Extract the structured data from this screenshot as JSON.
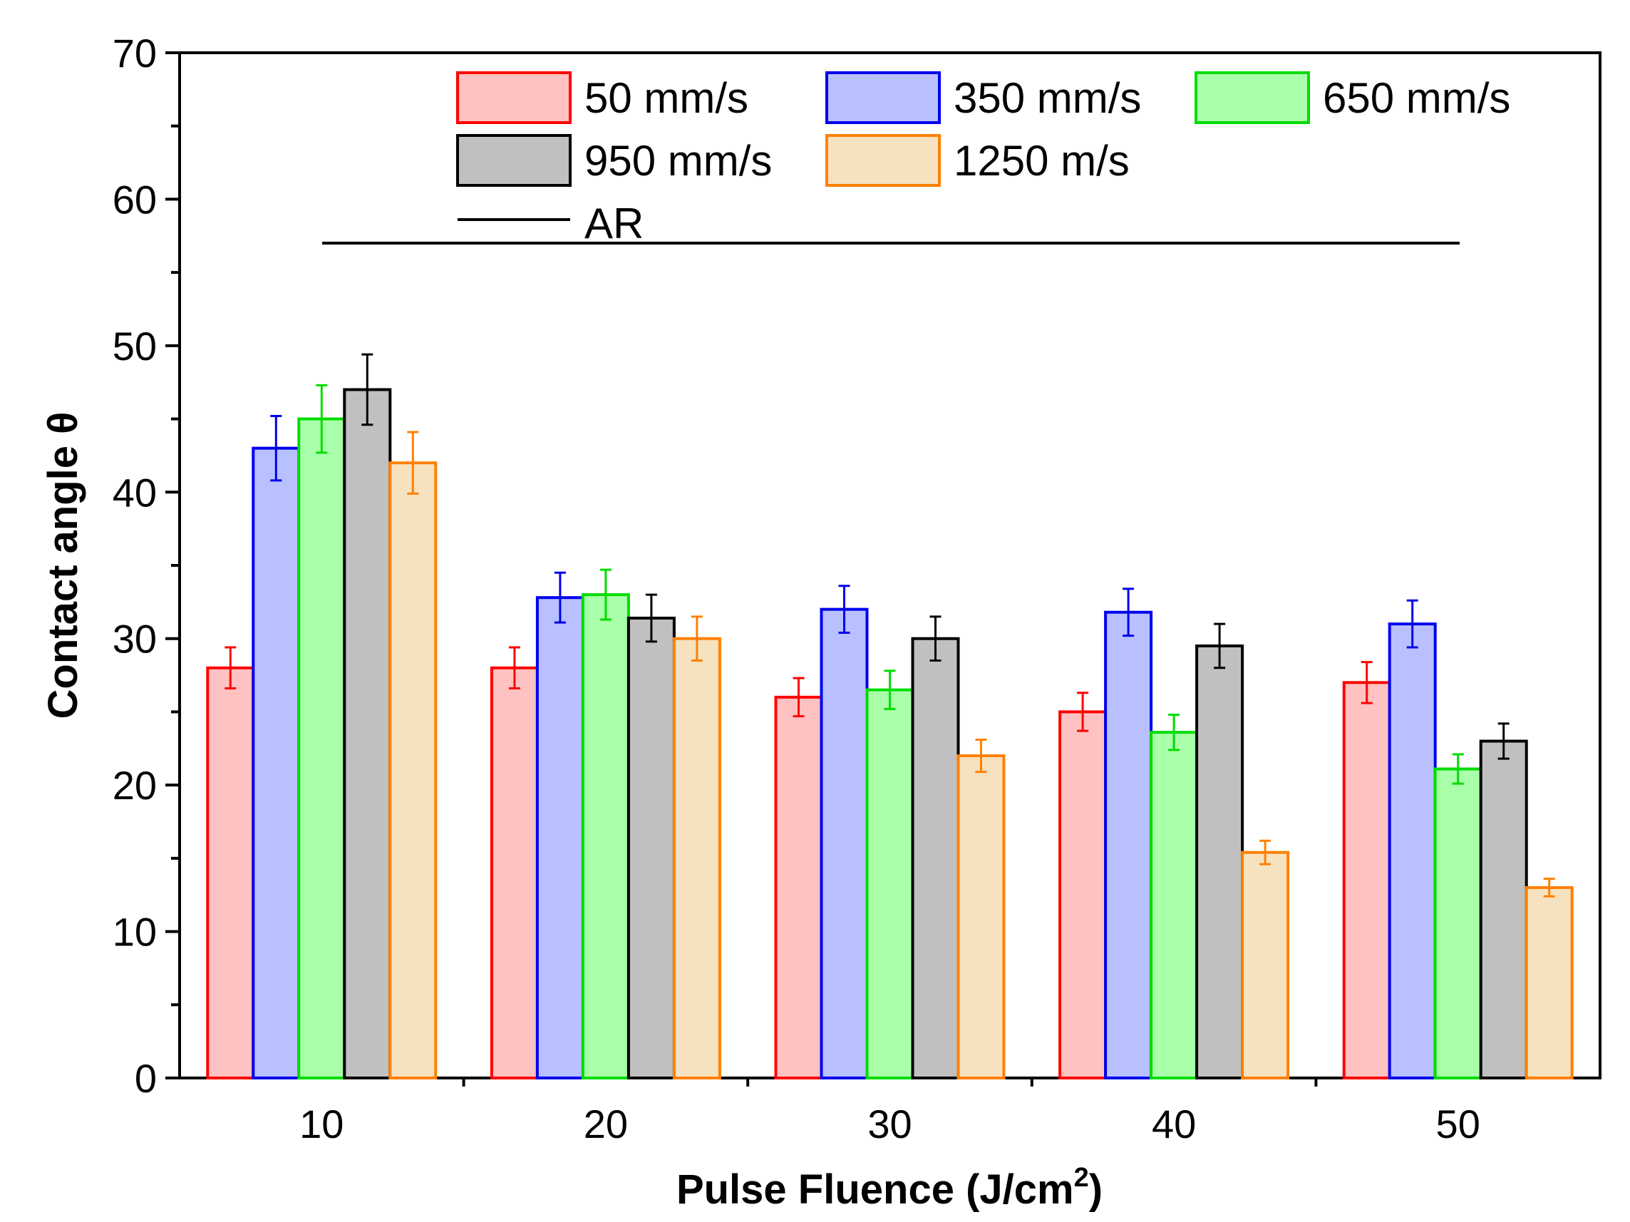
{
  "chart_data": {
    "type": "bar",
    "title": "",
    "xlabel": "Pulse Fluence (J/cm",
    "xlabel_sup": "2",
    "xlabel_close": ")",
    "ylabel": "Contact angle θ",
    "ylim": [
      0,
      70
    ],
    "categories": [
      "10",
      "20",
      "30",
      "40",
      "50"
    ],
    "yticks": [
      "0",
      "10",
      "20",
      "30",
      "40",
      "50",
      "60",
      "70"
    ],
    "series": [
      {
        "name": "50 mm/s",
        "stroke": "#ff0000",
        "fill": "#ffc2c2",
        "values": [
          28,
          28,
          26,
          25,
          27
        ],
        "errors": [
          1.4,
          1.4,
          1.3,
          1.3,
          1.4
        ]
      },
      {
        "name": "350 mm/s",
        "stroke": "#0000ee",
        "fill": "#b9c0ff",
        "values": [
          43,
          32.8,
          32,
          31.8,
          31
        ],
        "errors": [
          2.2,
          1.7,
          1.6,
          1.6,
          1.6
        ]
      },
      {
        "name": "650 mm/s",
        "stroke": "#00dd00",
        "fill": "#aaffaa",
        "values": [
          45,
          33,
          26.5,
          23.6,
          21.1
        ],
        "errors": [
          2.3,
          1.7,
          1.3,
          1.2,
          1.0
        ]
      },
      {
        "name": "950 mm/s",
        "stroke": "#000000",
        "fill": "#c0c0c0",
        "values": [
          47,
          31.4,
          30,
          29.5,
          23
        ],
        "errors": [
          2.4,
          1.6,
          1.5,
          1.5,
          1.2
        ]
      },
      {
        "name": "1250 m/s",
        "stroke": "#ff8000",
        "fill": "#f7e2c0",
        "values": [
          42,
          30,
          22,
          15.4,
          13
        ],
        "errors": [
          2.1,
          1.5,
          1.1,
          0.8,
          0.6
        ]
      }
    ],
    "reference_line": {
      "name": "AR",
      "value": 57,
      "color": "#000000"
    },
    "legend_position": "top-right"
  }
}
